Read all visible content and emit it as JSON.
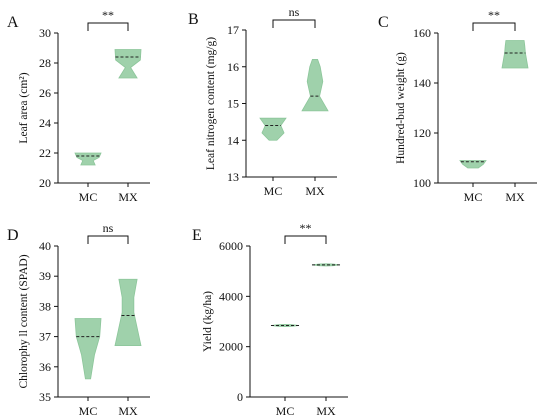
{
  "chart_data": [
    {
      "type": "violin",
      "panel_label": "A",
      "ylabel": "Leaf area (cm²)",
      "categories": [
        "MC",
        "MX"
      ],
      "ylim": [
        20,
        30
      ],
      "yticks": [
        20,
        22,
        24,
        26,
        28,
        30
      ],
      "series": [
        {
          "category": "MC",
          "min": 21.2,
          "max": 22.0,
          "median": 21.8,
          "profile": [
            [
              21.2,
              0.55
            ],
            [
              21.5,
              0.4
            ],
            [
              21.7,
              0.85
            ],
            [
              22.0,
              1.0
            ]
          ]
        },
        {
          "category": "MX",
          "min": 27.0,
          "max": 28.9,
          "median": 28.4,
          "profile": [
            [
              27.0,
              0.7
            ],
            [
              27.7,
              0.2
            ],
            [
              28.2,
              0.95
            ],
            [
              28.9,
              1.0
            ]
          ]
        }
      ],
      "significance": "**",
      "color": "#9fd1ab"
    },
    {
      "type": "violin",
      "panel_label": "B",
      "ylabel": "Leaf nitrogen content  (mg/g)",
      "categories": [
        "MC",
        "MX"
      ],
      "ylim": [
        13,
        17
      ],
      "yticks": [
        13,
        14,
        15,
        16,
        17
      ],
      "series": [
        {
          "category": "MC",
          "min": 14.0,
          "max": 14.6,
          "median": 14.4,
          "profile": [
            [
              14.0,
              0.3
            ],
            [
              14.2,
              0.85
            ],
            [
              14.4,
              0.6
            ],
            [
              14.6,
              1.0
            ]
          ]
        },
        {
          "category": "MX",
          "min": 14.8,
          "max": 16.2,
          "median": 15.2,
          "profile": [
            [
              14.8,
              1.0
            ],
            [
              15.2,
              0.35
            ],
            [
              15.6,
              0.6
            ],
            [
              16.0,
              0.4
            ],
            [
              16.2,
              0.2
            ]
          ]
        }
      ],
      "significance": "ns",
      "color": "#9fd1ab"
    },
    {
      "type": "violin",
      "panel_label": "C",
      "ylabel": "Hundred-bud weight (g)",
      "categories": [
        "MC",
        "MX"
      ],
      "ylim": [
        100,
        160
      ],
      "yticks": [
        100,
        120,
        140,
        160
      ],
      "series": [
        {
          "category": "MC",
          "min": 106,
          "max": 109,
          "median": 108.5,
          "profile": [
            [
              106,
              0.4
            ],
            [
              107.5,
              0.8
            ],
            [
              109,
              1.0
            ]
          ]
        },
        {
          "category": "MX",
          "min": 146,
          "max": 157,
          "median": 152,
          "profile": [
            [
              146,
              1.0
            ],
            [
              149,
              0.9
            ],
            [
              152,
              0.8
            ],
            [
              155,
              0.75
            ],
            [
              157,
              0.7
            ]
          ]
        }
      ],
      "significance": "**",
      "color": "#9fd1ab"
    },
    {
      "type": "violin",
      "panel_label": "D",
      "ylabel": "Chlorophy ll content  (SPAD)",
      "categories": [
        "MC",
        "MX"
      ],
      "ylim": [
        35,
        40
      ],
      "yticks": [
        35,
        36,
        37,
        38,
        39,
        40
      ],
      "series": [
        {
          "category": "MC",
          "min": 35.6,
          "max": 37.6,
          "median": 37.0,
          "profile": [
            [
              35.6,
              0.2
            ],
            [
              36.4,
              0.5
            ],
            [
              37.0,
              0.9
            ],
            [
              37.6,
              1.0
            ]
          ]
        },
        {
          "category": "MX",
          "min": 36.7,
          "max": 38.9,
          "median": 37.7,
          "profile": [
            [
              36.7,
              1.0
            ],
            [
              37.2,
              0.75
            ],
            [
              37.8,
              0.45
            ],
            [
              38.3,
              0.45
            ],
            [
              38.9,
              0.7
            ]
          ]
        }
      ],
      "significance": "ns",
      "color": "#9fd1ab"
    },
    {
      "type": "violin",
      "panel_label": "E",
      "ylabel": "Yield (kg/ha)",
      "categories": [
        "MC",
        "MX"
      ],
      "ylim": [
        0,
        6000
      ],
      "yticks": [
        0,
        2000,
        4000,
        6000
      ],
      "series": [
        {
          "category": "MC",
          "min": 2800,
          "max": 2880,
          "median": 2840,
          "profile": [
            [
              2800,
              0.9
            ],
            [
              2880,
              1.0
            ]
          ]
        },
        {
          "category": "MX",
          "min": 5220,
          "max": 5290,
          "median": 5250,
          "profile": [
            [
              5220,
              1.0
            ],
            [
              5290,
              1.0
            ]
          ]
        }
      ],
      "significance": "**",
      "color": "#9fd1ab"
    }
  ]
}
